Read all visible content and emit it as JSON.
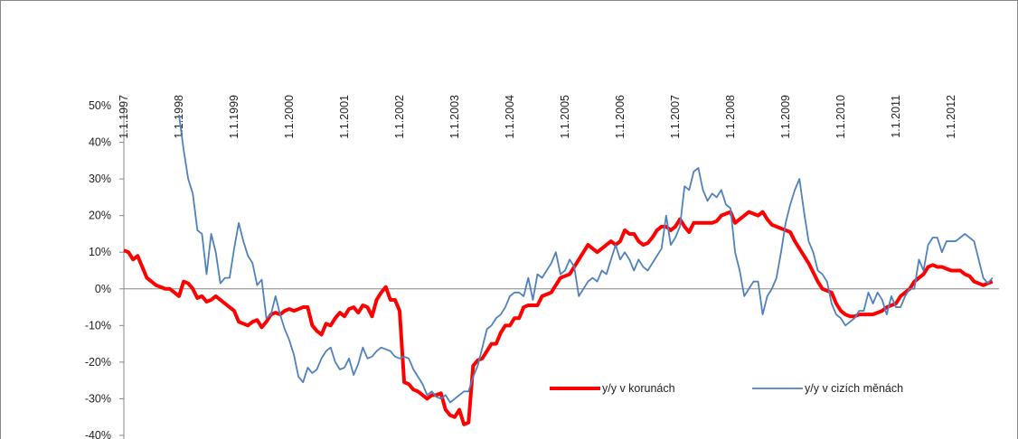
{
  "chart_data": {
    "type": "line",
    "categories": [
      "1.1.1997",
      null,
      null,
      null,
      null,
      null,
      null,
      null,
      null,
      null,
      null,
      null,
      "1.1.1998",
      null,
      null,
      null,
      null,
      null,
      null,
      null,
      null,
      null,
      null,
      null,
      "1.1.1999",
      null,
      null,
      null,
      null,
      null,
      null,
      null,
      null,
      null,
      null,
      null,
      "1.1.2000",
      null,
      null,
      null,
      null,
      null,
      null,
      null,
      null,
      null,
      null,
      null,
      "1.1.2001",
      null,
      null,
      null,
      null,
      null,
      null,
      null,
      null,
      null,
      null,
      null,
      "1.1.2002",
      null,
      null,
      null,
      null,
      null,
      null,
      null,
      null,
      null,
      null,
      null,
      "1.1.2003",
      null,
      null,
      null,
      null,
      null,
      null,
      null,
      null,
      null,
      null,
      null,
      "1.1.2004",
      null,
      null,
      null,
      null,
      null,
      null,
      null,
      null,
      null,
      null,
      null,
      "1.1.2005",
      null,
      null,
      null,
      null,
      null,
      null,
      null,
      null,
      null,
      null,
      null,
      "1.1.2006",
      null,
      null,
      null,
      null,
      null,
      null,
      null,
      null,
      null,
      null,
      null,
      "1.1.2007",
      null,
      null,
      null,
      null,
      null,
      null,
      null,
      null,
      null,
      null,
      null,
      "1.1.2008",
      null,
      null,
      null,
      null,
      null,
      null,
      null,
      null,
      null,
      null,
      null,
      "1.1.2009",
      null,
      null,
      null,
      null,
      null,
      null,
      null,
      null,
      null,
      null,
      null,
      "1.1.2010",
      null,
      null,
      null,
      null,
      null,
      null,
      null,
      null,
      null,
      null,
      null,
      "1.1.2011",
      null,
      null,
      null,
      null,
      null,
      null,
      null,
      null,
      null,
      null,
      null,
      "1.1.2012",
      null,
      null,
      null,
      null,
      null,
      null,
      null,
      null,
      null
    ],
    "series": [
      {
        "name": "y/y v korunách",
        "color": "#ff0000",
        "values": [
          10.5,
          10,
          8,
          9,
          6,
          3,
          2,
          1,
          0.5,
          0,
          0,
          -1,
          -2,
          2,
          1.5,
          0,
          -2.5,
          -2,
          -3.5,
          -3,
          -2,
          -3,
          -4,
          -5,
          -6,
          -9,
          -9.5,
          -10,
          -9,
          -8.5,
          -10.5,
          -9,
          -7,
          -6.5,
          -7,
          -6,
          -5.5,
          -6,
          -5.5,
          -5,
          -5,
          -10,
          -11.5,
          -12.5,
          -9.5,
          -10,
          -8,
          -6.5,
          -7.5,
          -5.5,
          -5,
          -6.5,
          -4.5,
          -5,
          -7.5,
          -3,
          -1,
          0.5,
          -3,
          -3,
          -6,
          -25.5,
          -26,
          -27.5,
          -28,
          -29,
          -30,
          -29,
          -29,
          -28.5,
          -33,
          -34.5,
          -35,
          -33,
          -37,
          -36.5,
          -21,
          -19.5,
          -19,
          -17,
          -15,
          -15,
          -12,
          -10,
          -10,
          -8,
          -8,
          -5,
          -4.5,
          -4.5,
          -4.5,
          -2,
          -1.5,
          -1,
          1,
          3,
          3.5,
          4,
          6,
          8,
          10,
          12,
          11,
          10,
          11,
          12,
          13,
          12,
          13,
          16,
          15,
          15,
          13,
          12,
          12.5,
          14,
          16,
          17,
          17,
          16,
          17,
          19,
          17,
          15.5,
          18,
          18,
          18,
          18,
          18,
          18.5,
          20,
          20.5,
          21,
          18,
          19,
          20,
          21,
          20.5,
          20,
          21,
          19,
          17.5,
          17,
          16.5,
          16,
          15.5,
          13,
          11,
          9,
          7,
          4.5,
          2,
          0,
          -0.5,
          -1,
          -4,
          -6,
          -7,
          -7.5,
          -7.5,
          -7,
          -7,
          -7,
          -7,
          -6.5,
          -6,
          -5,
          -4.5,
          -4,
          -2,
          -1,
          0,
          2,
          3,
          4,
          6,
          6.5,
          6,
          6,
          5.5,
          5,
          5,
          5,
          4,
          3.5,
          2,
          1.5,
          1,
          1.5,
          2
        ]
      },
      {
        "name": "y/y v cizích měnách",
        "color": "#4f81bd",
        "values": [
          null,
          null,
          null,
          null,
          null,
          null,
          null,
          null,
          null,
          null,
          null,
          null,
          47.5,
          38,
          30,
          26,
          16,
          15,
          4,
          15,
          10,
          1.5,
          3,
          3,
          11,
          18,
          13,
          9,
          7,
          1,
          2.5,
          -8,
          -7,
          -2,
          -7,
          -11,
          -14,
          -18,
          -24,
          -25.5,
          -21.5,
          -23,
          -22,
          -19,
          -17,
          -16,
          -20,
          -22,
          -21.5,
          -19,
          -23.5,
          -20.5,
          -16,
          -19,
          -18.5,
          -17,
          -16,
          -16.5,
          -17,
          -18.5,
          -19,
          -18.5,
          -19,
          -22,
          -24,
          -26,
          -29,
          -28,
          -29.5,
          -30,
          -29,
          -31,
          -30,
          -29,
          -28,
          -28,
          -24,
          -21,
          -16,
          -11,
          -10,
          -8,
          -7,
          -5,
          -2,
          -1,
          -1,
          -2,
          3,
          -3,
          4,
          3,
          5,
          7,
          10,
          4,
          5,
          8,
          6,
          -2,
          0,
          2,
          3,
          2,
          5,
          4,
          8,
          12,
          8,
          10,
          8,
          5,
          8,
          6,
          5,
          7,
          9,
          11,
          20,
          12,
          14,
          17,
          28,
          27,
          32,
          33,
          27,
          24,
          26,
          25,
          27,
          23,
          22,
          10,
          5,
          -2,
          0,
          2,
          2,
          -7,
          -2,
          0,
          3,
          10,
          18,
          23,
          27,
          30,
          21,
          13,
          10,
          5,
          4,
          2,
          -4,
          -7,
          -8,
          -10,
          -9,
          -8,
          -6,
          -6,
          -1,
          -4,
          -1,
          -3,
          -7,
          -2,
          -5,
          -5,
          -2,
          0,
          0,
          8,
          5,
          12,
          14,
          14,
          10,
          13,
          13,
          13,
          14,
          15,
          14,
          13,
          8,
          3,
          1.5,
          3
        ]
      }
    ],
    "ylim": [
      -40,
      50
    ],
    "yticks": [
      {
        "value": -40,
        "label": "-40%"
      },
      {
        "value": -30,
        "label": "-30%"
      },
      {
        "value": -20,
        "label": "-20%"
      },
      {
        "value": -10,
        "label": "-10%"
      },
      {
        "value": 0,
        "label": "0%"
      },
      {
        "value": 10,
        "label": "10%"
      },
      {
        "value": 20,
        "label": "20%"
      },
      {
        "value": 30,
        "label": "30%"
      },
      {
        "value": 40,
        "label": "40%"
      },
      {
        "value": 50,
        "label": "50%"
      }
    ],
    "grid": false
  }
}
